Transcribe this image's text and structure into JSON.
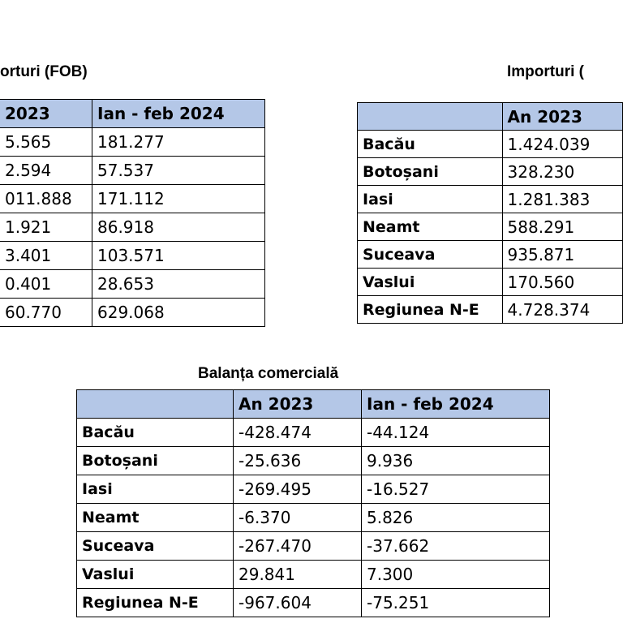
{
  "left": {
    "title": "orturi (FOB)",
    "columns": [
      "2023",
      "Ian - feb 2024"
    ],
    "rows": [
      [
        "5.565",
        "181.277"
      ],
      [
        "2.594",
        "57.537"
      ],
      [
        "011.888",
        "171.112"
      ],
      [
        "1.921",
        "86.918"
      ],
      [
        "3.401",
        "103.571"
      ],
      [
        "0.401",
        "28.653"
      ],
      [
        "60.770",
        "629.068"
      ]
    ]
  },
  "right": {
    "title": "Importuri (",
    "columns": [
      "An 2023"
    ],
    "rows": [
      [
        "Bacău",
        "1.424.039"
      ],
      [
        "Botoșani",
        "328.230"
      ],
      [
        "Iasi",
        "1.281.383"
      ],
      [
        "Neamt",
        "588.291"
      ],
      [
        "Suceava",
        "935.871"
      ],
      [
        "Vaslui",
        "170.560"
      ],
      [
        "Regiunea N-E",
        "4.728.374"
      ]
    ]
  },
  "bottom": {
    "title": "Balanța comercială",
    "columns": [
      "An 2023",
      "Ian - feb 2024"
    ],
    "rows": [
      [
        "Bacău",
        "-428.474",
        "-44.124"
      ],
      [
        "Botoșani",
        "-25.636",
        "9.936"
      ],
      [
        "Iasi",
        "-269.495",
        "-16.527"
      ],
      [
        "Neamt",
        "-6.370",
        "5.826"
      ],
      [
        "Suceava",
        "-267.470",
        "-37.662"
      ],
      [
        "Vaslui",
        "29.841",
        "7.300"
      ],
      [
        "Regiunea N-E",
        "-967.604",
        "-75.251"
      ]
    ]
  }
}
